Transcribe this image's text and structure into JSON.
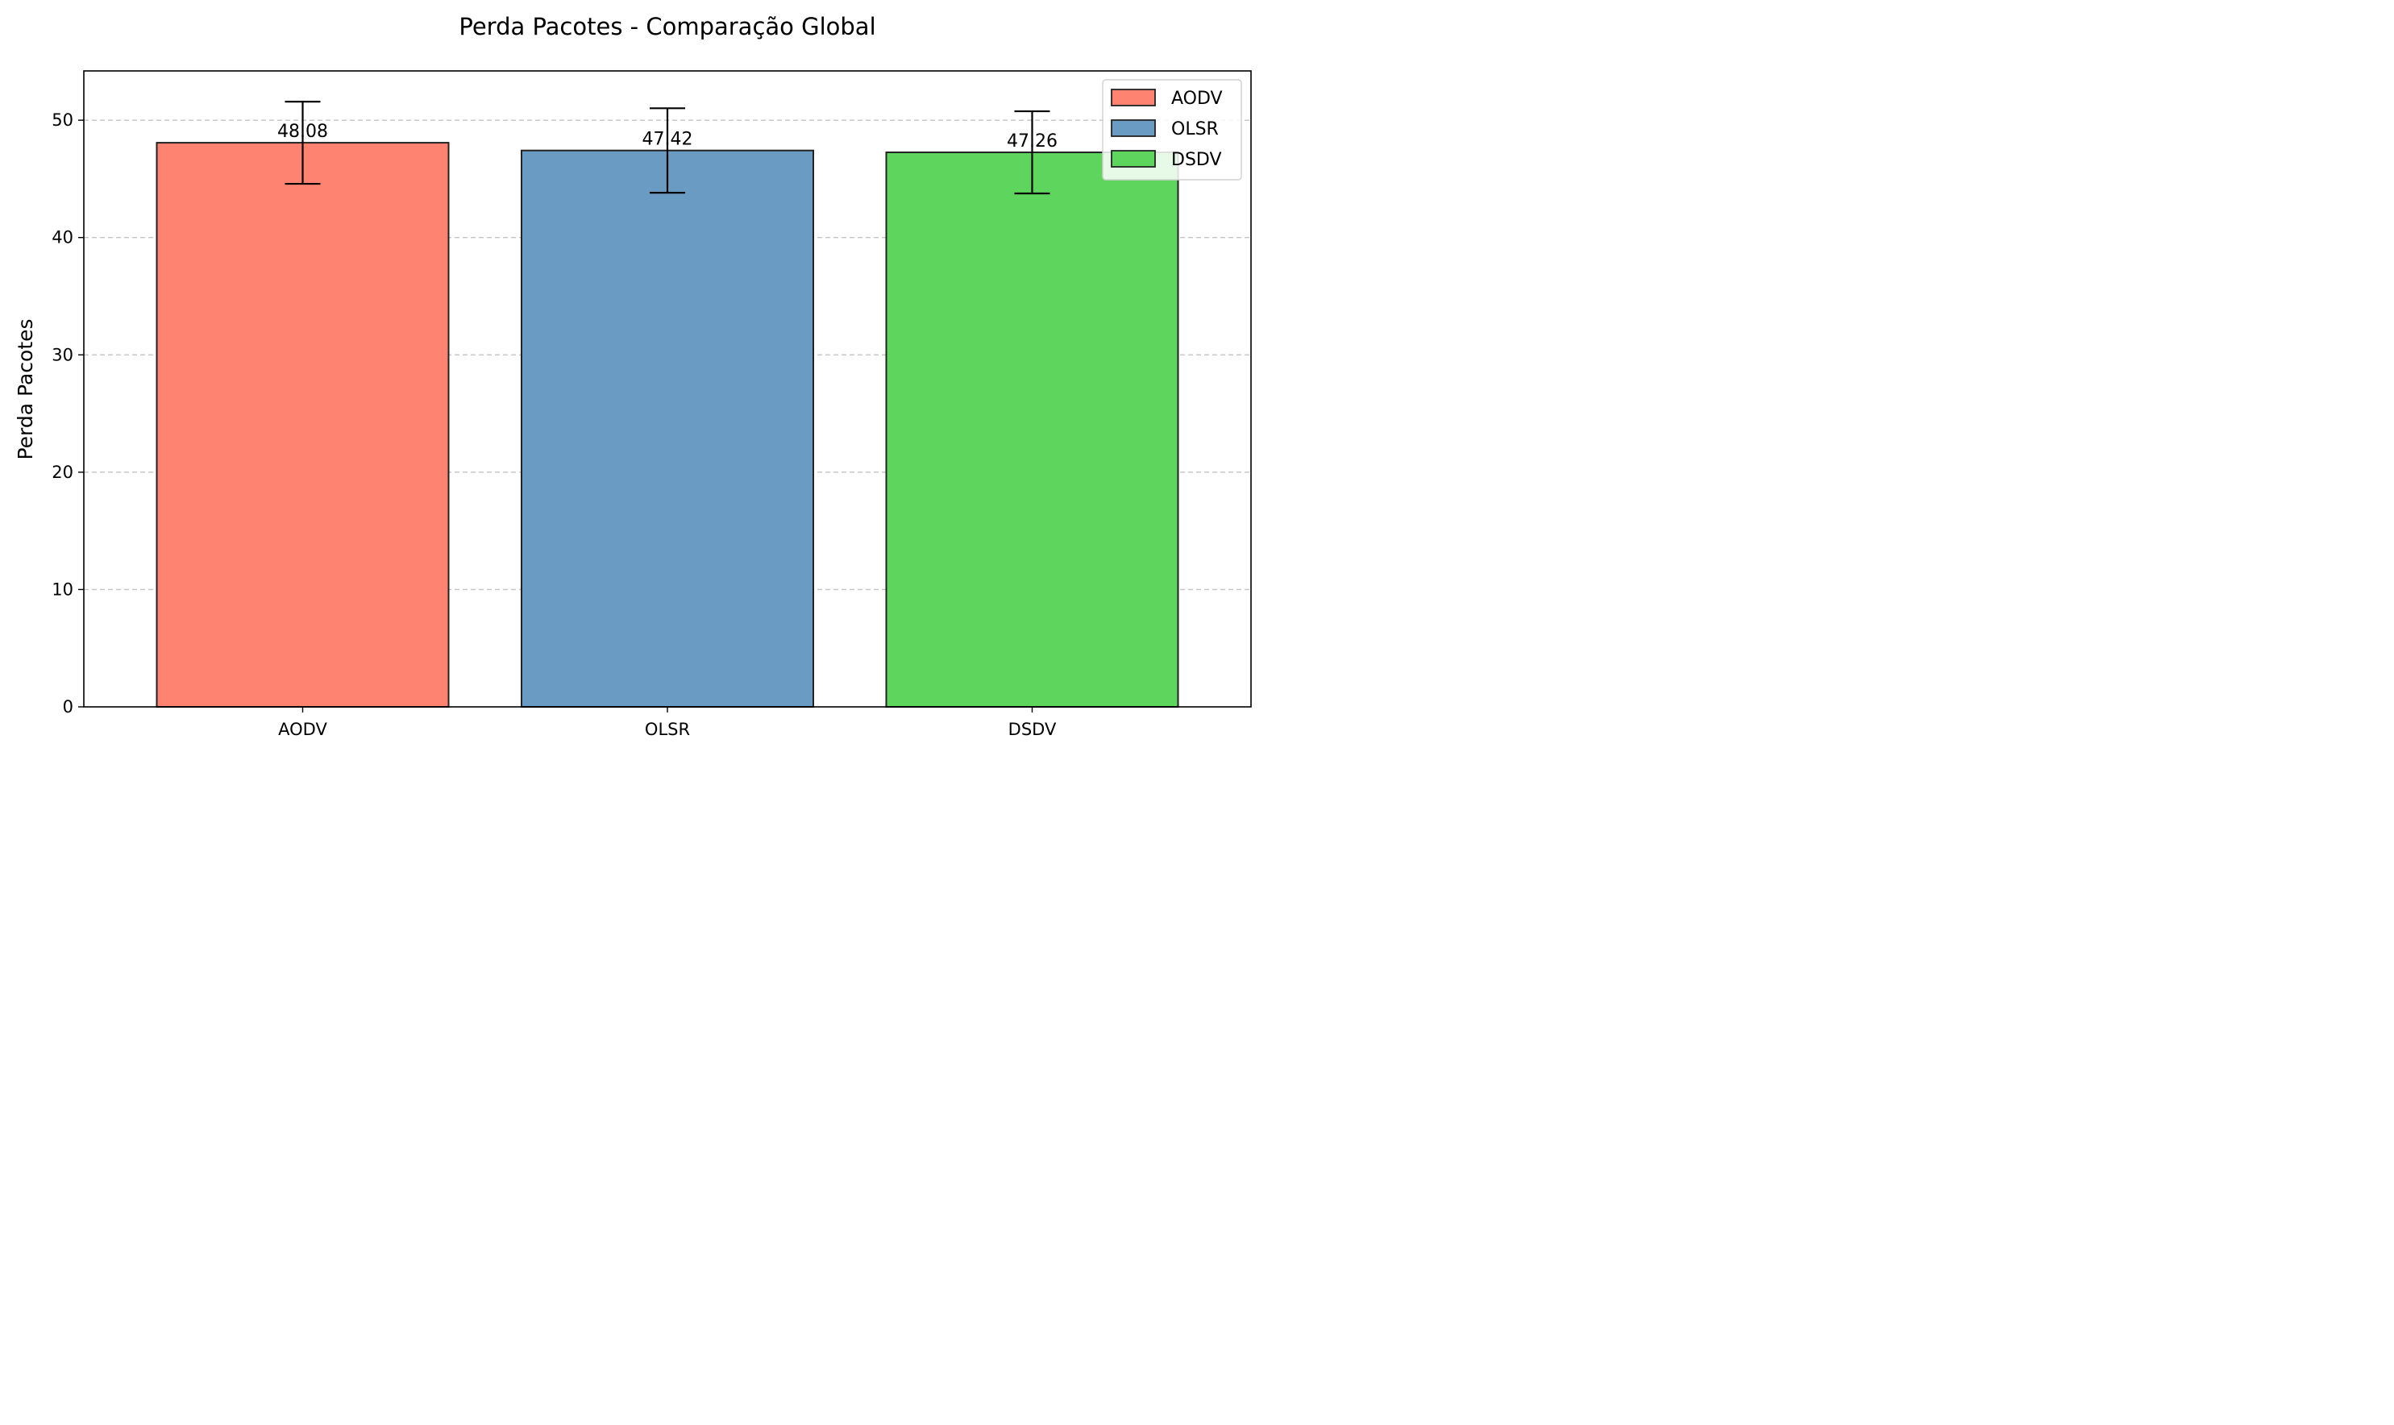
{
  "chart_data": {
    "type": "bar",
    "title": "Perda Pacotes - Comparação Global",
    "xlabel": "",
    "ylabel": "Perda Pacotes",
    "categories": [
      "AODV",
      "OLSR",
      "DSDV"
    ],
    "values": [
      48.08,
      47.42,
      47.26
    ],
    "value_labels": [
      "48.08",
      "47.42",
      "47.26"
    ],
    "error": [
      3.5,
      3.6,
      3.5
    ],
    "colors": [
      "#ff8370",
      "#6a9bc3",
      "#5ed65e"
    ],
    "edge_color": "#222222",
    "ylim": [
      0,
      54.2
    ],
    "yticks": [
      0,
      10,
      20,
      30,
      40,
      50
    ],
    "grid": "y-dashed",
    "legend": {
      "placement": "top-right",
      "entries": [
        "AODV",
        "OLSR",
        "DSDV"
      ]
    }
  }
}
